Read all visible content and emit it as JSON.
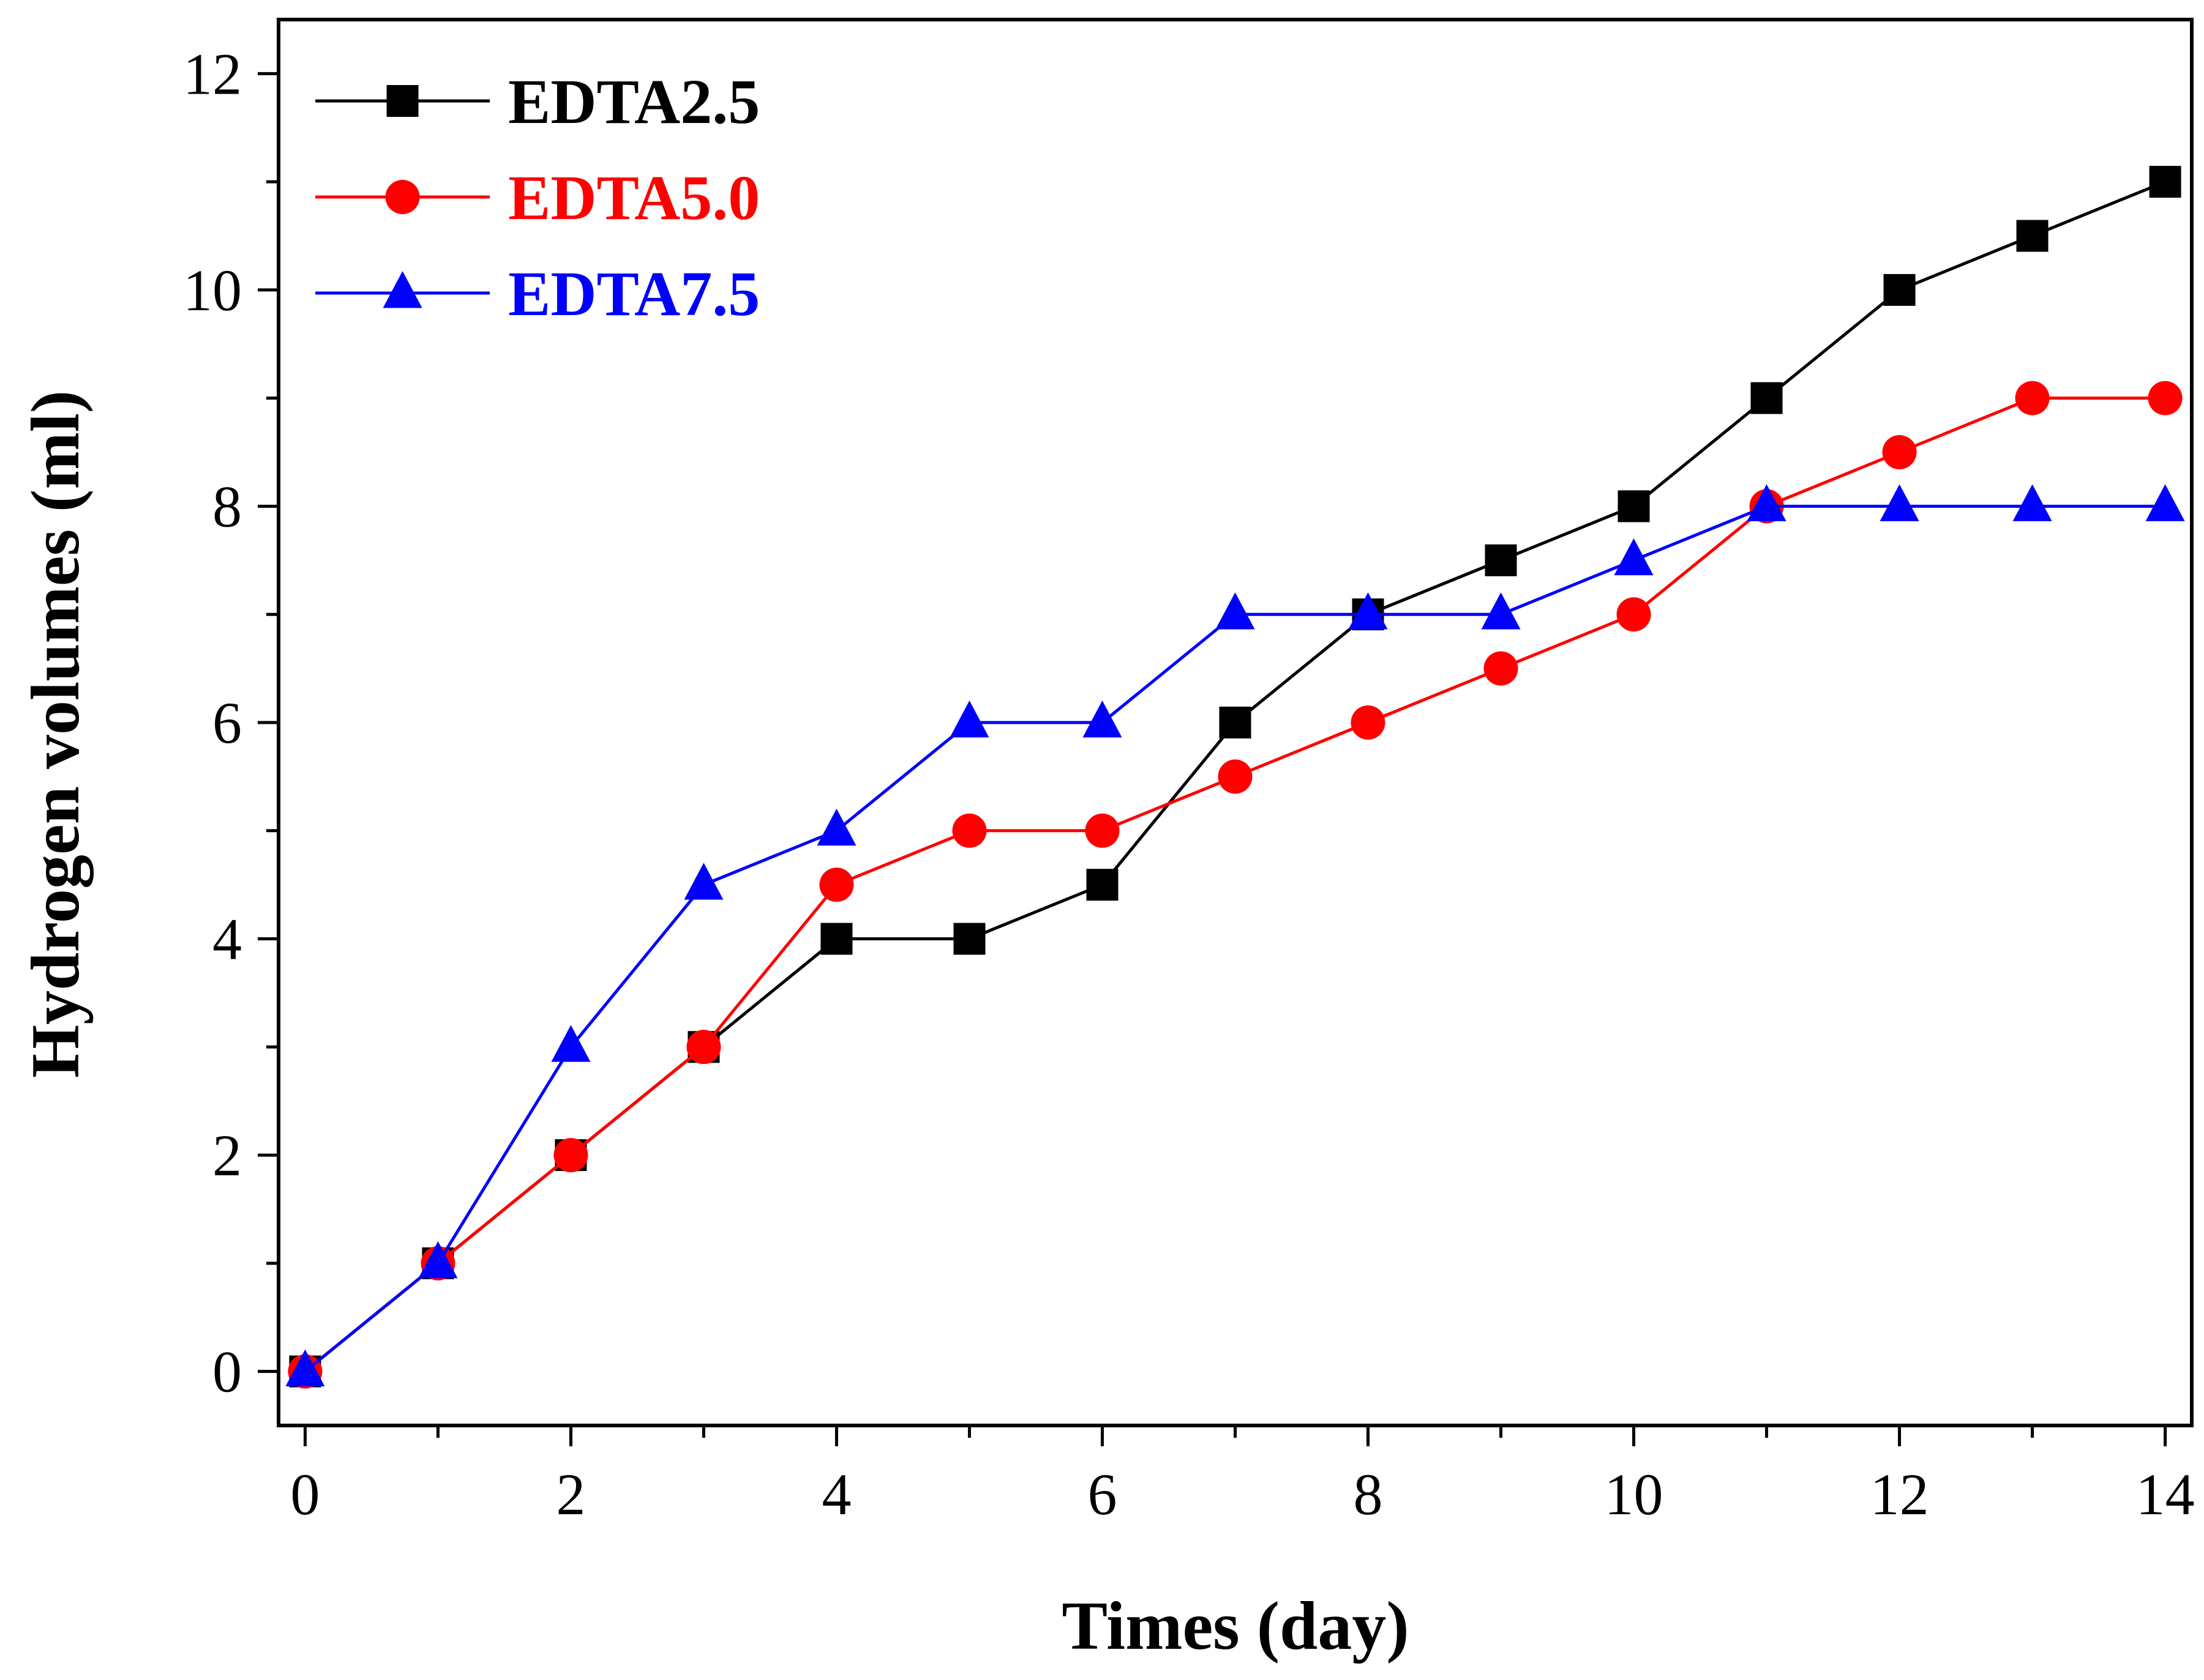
{
  "chart_data": {
    "type": "line",
    "xlabel": "Times (day)",
    "ylabel": "Hydrogen volumes (ml)",
    "xlim": [
      -0.2,
      14.2
    ],
    "ylim": [
      -0.5,
      12.5
    ],
    "xticks": [
      0,
      2,
      4,
      6,
      8,
      10,
      12,
      14
    ],
    "xticks_minor": [
      1,
      3,
      5,
      7,
      9,
      11,
      13
    ],
    "yticks": [
      0,
      2,
      4,
      6,
      8,
      10,
      12
    ],
    "yticks_minor": [
      1,
      3,
      5,
      7,
      9,
      11
    ],
    "x": [
      0,
      1,
      2,
      3,
      4,
      5,
      6,
      7,
      8,
      9,
      10,
      11,
      12,
      13,
      14
    ],
    "legend_position": "top-left",
    "grid": false,
    "series": [
      {
        "name": "EDTA2.5",
        "color": "#000000",
        "marker": "square",
        "values": [
          0,
          1,
          2,
          3,
          4,
          4,
          4.5,
          6,
          7,
          7.5,
          8,
          9,
          10,
          10.5,
          11
        ]
      },
      {
        "name": "EDTA5.0",
        "color": "#ff0000",
        "marker": "circle",
        "values": [
          0,
          1,
          2,
          3,
          4.5,
          5,
          5,
          5.5,
          6,
          6.5,
          7,
          8,
          8.5,
          9,
          9
        ]
      },
      {
        "name": "EDTA7.5",
        "color": "#0000ff",
        "marker": "triangle",
        "values": [
          0,
          1,
          3,
          4.5,
          5,
          6,
          6,
          7,
          7,
          7,
          7.5,
          8,
          8,
          8,
          8
        ]
      }
    ]
  }
}
